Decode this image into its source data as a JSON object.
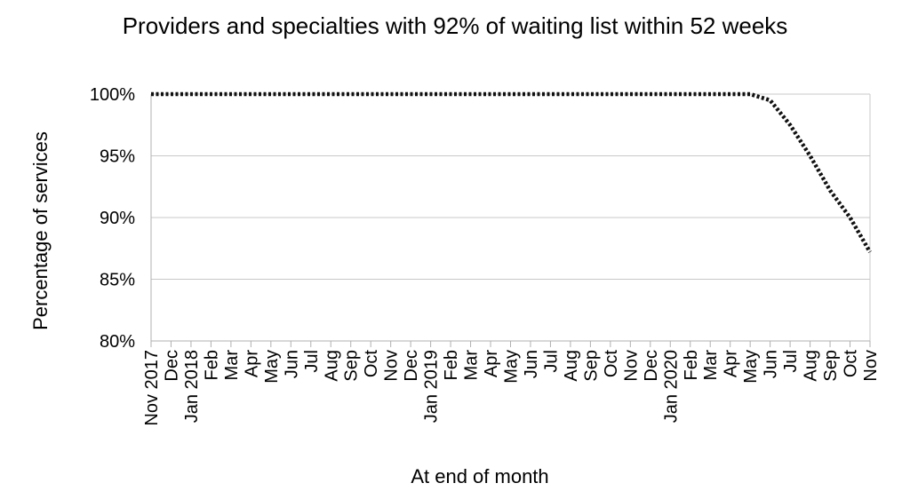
{
  "chart_data": {
    "type": "line",
    "title": "Providers and specialties with 92% of waiting list within 52 weeks",
    "xlabel": "At end of month",
    "ylabel": "Percentage of services",
    "ylim": [
      80,
      100
    ],
    "yticks": [
      "80%",
      "85%",
      "90%",
      "95%",
      "100%"
    ],
    "ytick_values": [
      80,
      85,
      90,
      95,
      100
    ],
    "grid": true,
    "legend": "none",
    "line_style": "dotted",
    "line_color": "#111111",
    "categories": [
      "Nov 2017",
      "Dec",
      "Jan 2018",
      "Feb",
      "Mar",
      "Apr",
      "May",
      "Jun",
      "Jul",
      "Aug",
      "Sep",
      "Oct",
      "Nov",
      "Dec",
      "Jan 2019",
      "Feb",
      "Mar",
      "Apr",
      "May",
      "Jun",
      "Jul",
      "Aug",
      "Sep",
      "Oct",
      "Nov",
      "Dec",
      "Jan 2020",
      "Feb",
      "Mar",
      "Apr",
      "May",
      "Jun",
      "Jul",
      "Aug",
      "Sep",
      "Oct",
      "Nov"
    ],
    "series": [
      {
        "values": [
          100,
          100,
          100,
          100,
          100,
          100,
          100,
          100,
          100,
          100,
          100,
          100,
          100,
          100,
          100,
          100,
          100,
          100,
          100,
          100,
          100,
          100,
          100,
          100,
          100,
          100,
          100,
          100,
          100,
          100,
          100,
          99.5,
          97.5,
          95,
          92.2,
          90,
          87.2
        ]
      }
    ]
  }
}
